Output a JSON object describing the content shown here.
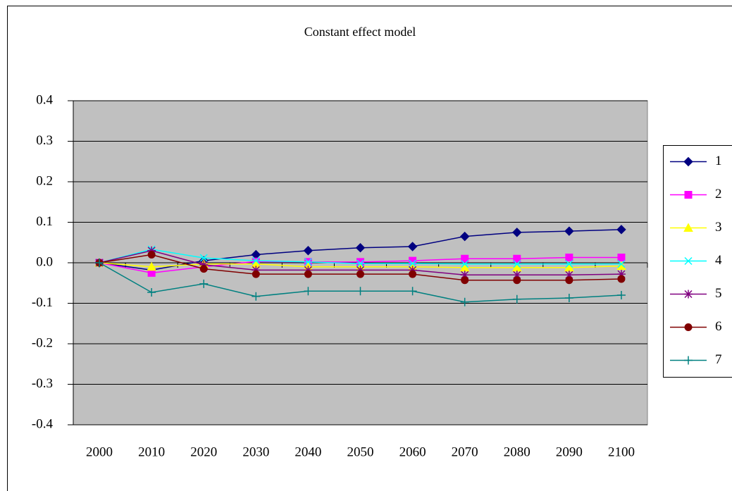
{
  "chart_data": {
    "type": "line",
    "title": "Constant effect model",
    "categories": [
      "2000",
      "2010",
      "2020",
      "2030",
      "2040",
      "2050",
      "2060",
      "2070",
      "2080",
      "2090",
      "2100"
    ],
    "ylim": [
      -0.4,
      0.4
    ],
    "yticks": [
      -0.4,
      -0.3,
      -0.2,
      -0.1,
      {
        "value": 0,
        "label": "0.0"
      },
      0.1,
      0.2,
      0.3,
      0.4
    ],
    "grid": true,
    "legend": "right",
    "background": "#c0c0c0",
    "series": [
      {
        "name": "1",
        "color": "#000080",
        "marker": "diamond",
        "values": [
          0,
          -0.018,
          0.005,
          0.02,
          0.03,
          0.037,
          0.04,
          0.065,
          0.075,
          0.078,
          0.082
        ]
      },
      {
        "name": "2",
        "color": "#ff00ff",
        "marker": "square",
        "values": [
          0,
          -0.025,
          -0.01,
          0.003,
          0.002,
          0.002,
          0.005,
          0.01,
          0.01,
          0.013,
          0.013
        ]
      },
      {
        "name": "3",
        "color": "#ffff00",
        "marker": "triangle",
        "values": [
          0,
          -0.01,
          -0.003,
          -0.003,
          -0.01,
          -0.01,
          -0.01,
          -0.012,
          -0.012,
          -0.012,
          -0.008
        ]
      },
      {
        "name": "4",
        "color": "#00ffff",
        "marker": "x",
        "values": [
          0,
          0.033,
          0.012,
          0.005,
          0.002,
          -0.002,
          -0.002,
          -0.003,
          -0.003,
          -0.003,
          -0.003
        ]
      },
      {
        "name": "5",
        "color": "#800080",
        "marker": "star",
        "values": [
          0,
          0.03,
          -0.005,
          -0.018,
          -0.018,
          -0.018,
          -0.018,
          -0.03,
          -0.03,
          -0.03,
          -0.028
        ]
      },
      {
        "name": "6",
        "color": "#800000",
        "marker": "circle",
        "values": [
          0,
          0.02,
          -0.015,
          -0.028,
          -0.028,
          -0.028,
          -0.028,
          -0.043,
          -0.043,
          -0.043,
          -0.04
        ]
      },
      {
        "name": "7",
        "color": "#008080",
        "marker": "plus",
        "values": [
          0,
          -0.073,
          -0.052,
          -0.083,
          -0.07,
          -0.07,
          -0.07,
          -0.097,
          -0.09,
          -0.087,
          -0.08
        ]
      }
    ]
  }
}
